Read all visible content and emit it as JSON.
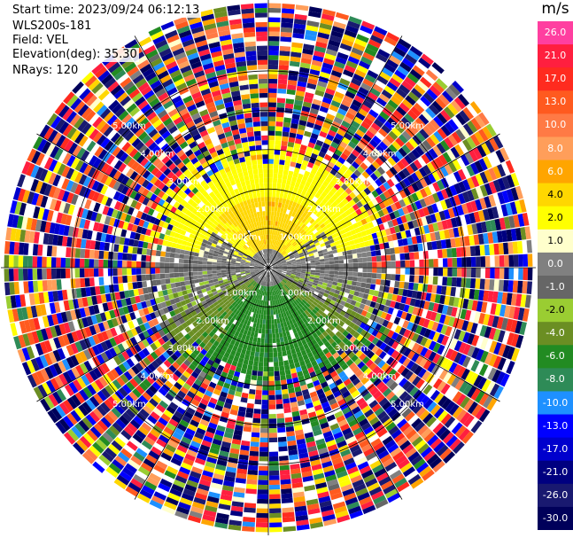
{
  "header": {
    "start_time": "Start time: 2023/09/24 06:12:13",
    "instrument": "WLS200s-181",
    "field": "Field: VEL",
    "elevation": "Elevation(deg): 35.30",
    "nrays": "NRays: 120"
  },
  "colorbar": {
    "unit": "m/s",
    "ticks": [
      "26.0",
      "21.0",
      "17.0",
      "13.0",
      "10.0",
      "8.0",
      "6.0",
      "4.0",
      "2.0",
      "1.0",
      "0.0",
      "-1.0",
      "-2.0",
      "-4.0",
      "-6.0",
      "-8.0",
      "-10.0",
      "-13.0",
      "-17.0",
      "-21.0",
      "-26.0",
      "-30.0"
    ],
    "colors": [
      "#ff3fa0",
      "#ff1f3f",
      "#ff2b1f",
      "#ff5a1f",
      "#ff7a45",
      "#ff9e5a",
      "#ffa500",
      "#ffd700",
      "#ffff00",
      "#ffffcc",
      "#808080",
      "#666666",
      "#9acd32",
      "#6b8e23",
      "#228b22",
      "#2e8b57",
      "#1e90ff",
      "#0000ff",
      "#0000cd",
      "#000080",
      "#191970",
      "#00005a"
    ]
  },
  "chart_data": {
    "type": "heatmap",
    "title": "",
    "projection": "polar PPI",
    "field": "VEL",
    "units": "m/s",
    "rays": 120,
    "vmin": -30.0,
    "vmax": 26.0,
    "range_rings": [
      "1.00km",
      "2.00km",
      "3.00km",
      "4.00km",
      "5.00km"
    ],
    "range_ring_km": [
      1,
      2,
      3,
      4,
      5
    ],
    "spoke_step_deg": 30,
    "max_range_km": 6.8,
    "pattern": "coherent wind field within ~2.6 km: northerly sector positive (yellow/orange 2 to 6 m/s), southern sector negative (green -2 to -6 m/s), grey near-zero band east/west; noisy multicolor gates beyond ~3 km"
  }
}
